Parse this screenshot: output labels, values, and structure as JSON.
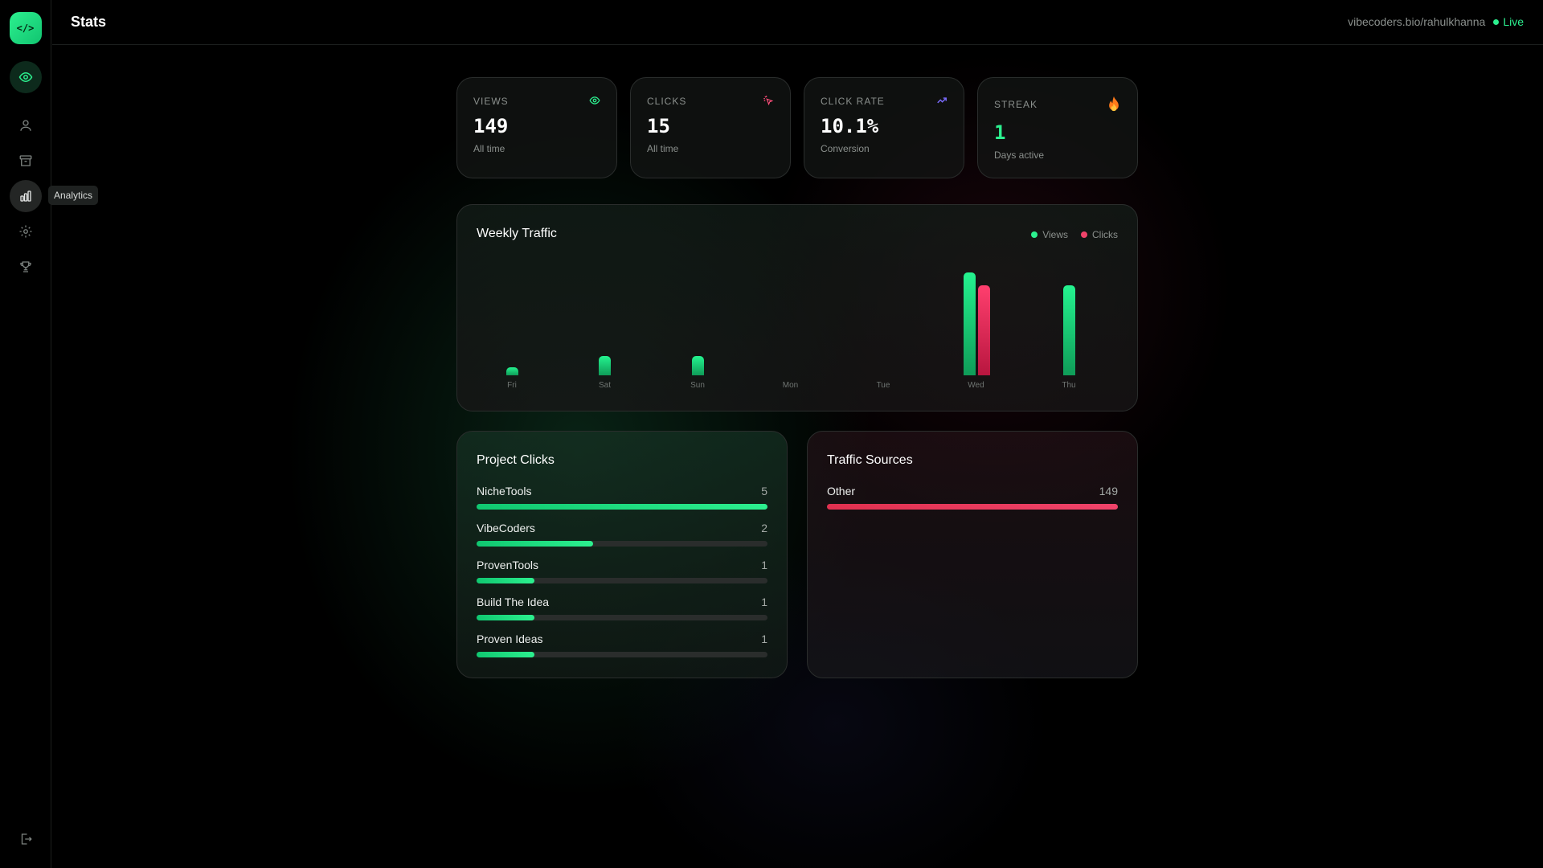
{
  "header": {
    "title": "Stats",
    "profile_url": "vibecoders.bio/rahulkhanna",
    "live_label": "Live"
  },
  "sidebar": {
    "logo_text": "</>",
    "items": [
      {
        "name": "eye-icon",
        "active": true
      },
      {
        "name": "user-icon",
        "active": false
      },
      {
        "name": "archive-icon",
        "active": false
      },
      {
        "name": "bar-chart-icon",
        "active": true
      },
      {
        "name": "gear-icon",
        "active": false
      },
      {
        "name": "trophy-icon",
        "active": false
      }
    ],
    "tooltip": "Analytics"
  },
  "stats": {
    "views": {
      "label": "VIEWS",
      "value": "149",
      "sub": "All time",
      "icon": "eye-icon"
    },
    "clicks": {
      "label": "CLICKS",
      "value": "15",
      "sub": "All time",
      "icon": "cursor-click-icon"
    },
    "click_rate": {
      "label": "CLICK RATE",
      "value": "10.1%",
      "sub": "Conversion",
      "icon": "trending-up-icon"
    },
    "streak": {
      "label": "STREAK",
      "value": "1",
      "sub": "Days active",
      "icon": "fire-icon"
    }
  },
  "weekly_traffic": {
    "title": "Weekly Traffic",
    "legend": {
      "views": "Views",
      "clicks": "Clicks"
    }
  },
  "chart_data": {
    "type": "bar",
    "categories": [
      "Fri",
      "Sat",
      "Sun",
      "Mon",
      "Tue",
      "Wed",
      "Thu"
    ],
    "series": [
      {
        "name": "Views",
        "values": [
          1,
          3,
          3,
          0,
          0,
          16,
          14
        ]
      },
      {
        "name": "Clicks",
        "values": [
          0,
          0,
          0,
          0,
          0,
          14,
          0
        ]
      }
    ],
    "ylim": [
      0,
      16
    ]
  },
  "project_clicks": {
    "title": "Project Clicks",
    "max": 5,
    "items": [
      {
        "name": "NicheTools",
        "count": "5",
        "value": 5
      },
      {
        "name": "VibeCoders",
        "count": "2",
        "value": 2
      },
      {
        "name": "ProvenTools",
        "count": "1",
        "value": 1
      },
      {
        "name": "Build The Idea",
        "count": "1",
        "value": 1
      },
      {
        "name": "Proven Ideas",
        "count": "1",
        "value": 1
      }
    ]
  },
  "traffic_sources": {
    "title": "Traffic Sources",
    "max": 149,
    "items": [
      {
        "name": "Other",
        "count": "149",
        "value": 149
      }
    ]
  },
  "colors": {
    "accent_green": "#2cf08f",
    "accent_red": "#f0436a",
    "click_rate_icon": "#7b6cff",
    "clicks_icon": "#ff4d7a"
  }
}
